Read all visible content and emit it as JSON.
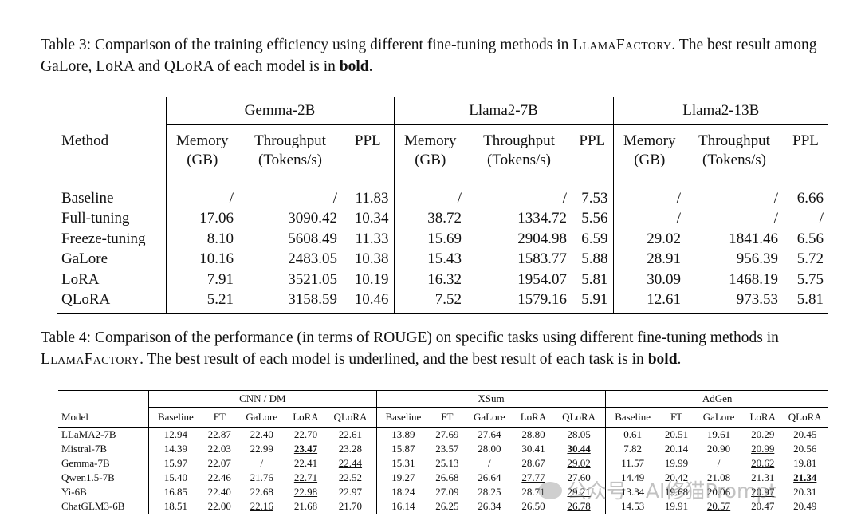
{
  "table3": {
    "caption_label": "Table 3:",
    "caption_pre": "Comparison of the training efficiency using different fine-tuning methods in ",
    "caption_brand": "LlamaFactory",
    "caption_mid": ". The best result among GaLore, LoRA and QLoRA of each model is in ",
    "caption_bold": "bold",
    "caption_end": ".",
    "method_header": "Method",
    "models": [
      "Gemma-2B",
      "Llama2-7B",
      "Llama2-13B"
    ],
    "col_memory": [
      "Memory",
      "(GB)"
    ],
    "col_throughput": [
      "Throughput",
      "(Tokens/s)"
    ],
    "col_ppl": "PPL",
    "rows": [
      {
        "method": "Baseline",
        "cells": [
          "/",
          "/",
          "11.83",
          "/",
          "/",
          "7.53",
          "/",
          "/",
          "6.66"
        ],
        "bold": []
      },
      {
        "method": "Full-tuning",
        "cells": [
          "17.06",
          "3090.42",
          "10.34",
          "38.72",
          "1334.72",
          "5.56",
          "/",
          "/",
          "/"
        ],
        "bold": []
      },
      {
        "method": "Freeze-tuning",
        "cells": [
          "8.10",
          "5608.49",
          "11.33",
          "15.69",
          "2904.98",
          "6.59",
          "29.02",
          "1841.46",
          "6.56"
        ],
        "bold": []
      },
      {
        "method": "GaLore",
        "cells": [
          "10.16",
          "2483.05",
          "10.38",
          "15.43",
          "1583.77",
          "5.88",
          "28.91",
          "956.39",
          "5.72"
        ],
        "bold": [
          8
        ]
      },
      {
        "method": "LoRA",
        "cells": [
          "7.91",
          "3521.05",
          "10.19",
          "16.32",
          "1954.07",
          "5.81",
          "30.09",
          "1468.19",
          "5.75"
        ],
        "bold": [
          1,
          2,
          4,
          5,
          7
        ]
      },
      {
        "method": "QLoRA",
        "cells": [
          "5.21",
          "3158.59",
          "10.46",
          "7.52",
          "1579.16",
          "5.91",
          "12.61",
          "973.53",
          "5.81"
        ],
        "bold": [
          0,
          3,
          6
        ]
      }
    ]
  },
  "table4": {
    "caption_label": "Table 4:",
    "caption_pre": "Comparison of the performance (in terms of ROUGE) on specific tasks using different fine-tuning methods in ",
    "caption_brand": "LlamaFactory",
    "caption_mid": ". The best result of each model is ",
    "caption_under": "underlined",
    "caption_mid2": ", and the best result of each task is in ",
    "caption_bold": "bold",
    "caption_end": ".",
    "model_header": "Model",
    "tasks": [
      "CNN / DM",
      "XSum",
      "AdGen"
    ],
    "methods": [
      "Baseline",
      "FT",
      "GaLore",
      "LoRA",
      "QLoRA"
    ],
    "rows": [
      {
        "model": "LLaMA2-7B",
        "cells": [
          "12.94",
          "22.87",
          "22.40",
          "22.70",
          "22.61",
          "13.89",
          "27.69",
          "27.64",
          "28.80",
          "28.05",
          "0.61",
          "20.51",
          "19.61",
          "20.29",
          "20.45"
        ],
        "under": [
          1,
          8,
          11
        ],
        "bold": []
      },
      {
        "model": "Mistral-7B",
        "cells": [
          "14.39",
          "22.03",
          "22.99",
          "23.47",
          "23.28",
          "15.87",
          "23.57",
          "28.00",
          "30.41",
          "30.44",
          "7.82",
          "20.14",
          "20.90",
          "20.99",
          "20.56"
        ],
        "under": [
          3,
          9,
          13
        ],
        "bold": [
          3,
          9
        ]
      },
      {
        "model": "Gemma-7B",
        "cells": [
          "15.97",
          "22.07",
          "/",
          "22.41",
          "22.44",
          "15.31",
          "25.13",
          "/",
          "28.67",
          "29.02",
          "11.57",
          "19.99",
          "/",
          "20.62",
          "19.81"
        ],
        "under": [
          4,
          9,
          13
        ],
        "bold": []
      },
      {
        "model": "Qwen1.5-7B",
        "cells": [
          "15.40",
          "22.46",
          "21.76",
          "22.71",
          "22.52",
          "19.27",
          "26.68",
          "26.64",
          "27.77",
          "27.60",
          "14.49",
          "20.42",
          "21.08",
          "21.31",
          "21.34"
        ],
        "under": [
          3,
          8,
          14
        ],
        "bold": [
          14
        ]
      },
      {
        "model": "Yi-6B",
        "cells": [
          "16.85",
          "22.40",
          "22.68",
          "22.98",
          "22.97",
          "18.24",
          "27.09",
          "28.25",
          "28.71",
          "29.21",
          "13.34",
          "19.68",
          "20.06",
          "20.97",
          "20.31"
        ],
        "under": [
          3,
          9,
          13
        ],
        "bold": []
      },
      {
        "model": "ChatGLM3-6B",
        "cells": [
          "18.51",
          "22.00",
          "22.16",
          "21.68",
          "21.70",
          "16.14",
          "26.25",
          "26.34",
          "26.50",
          "26.78",
          "14.53",
          "19.91",
          "20.57",
          "20.47",
          "20.49"
        ],
        "under": [
          2,
          9,
          12
        ],
        "bold": []
      }
    ]
  },
  "watermark": "公众号 · AI修猫Prompt"
}
